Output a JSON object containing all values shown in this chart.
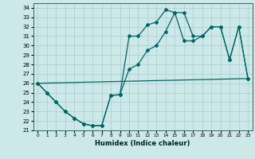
{
  "xlabel": "Humidex (Indice chaleur)",
  "bg_color": "#cce8e8",
  "line_color": "#006666",
  "grid_color": "#aacccc",
  "xlim": [
    -0.5,
    23.5
  ],
  "ylim": [
    21.0,
    34.5
  ],
  "yticks": [
    21,
    22,
    23,
    24,
    25,
    26,
    27,
    28,
    29,
    30,
    31,
    32,
    33,
    34
  ],
  "xticks": [
    0,
    1,
    2,
    3,
    4,
    5,
    6,
    7,
    8,
    9,
    10,
    11,
    12,
    13,
    14,
    15,
    16,
    17,
    18,
    19,
    20,
    21,
    22,
    23
  ],
  "line1_x": [
    0,
    1,
    2,
    3,
    4,
    5,
    6,
    7,
    8,
    9,
    10,
    11,
    12,
    13,
    14,
    15,
    16,
    17,
    18,
    19,
    20,
    21,
    22,
    23
  ],
  "line1_y": [
    26.0,
    25.0,
    24.0,
    23.0,
    22.3,
    21.7,
    21.5,
    21.5,
    24.7,
    24.8,
    31.0,
    31.0,
    32.2,
    32.5,
    33.8,
    33.5,
    33.5,
    31.0,
    31.0,
    32.0,
    32.0,
    28.5,
    32.0,
    26.5
  ],
  "line2_x": [
    0,
    1,
    2,
    3,
    4,
    5,
    6,
    7,
    8,
    9,
    10,
    11,
    12,
    13,
    14,
    15,
    16,
    17,
    18,
    19,
    20,
    21,
    22,
    23
  ],
  "line2_y": [
    26.0,
    25.0,
    24.0,
    23.0,
    22.3,
    21.7,
    21.5,
    21.5,
    24.7,
    24.8,
    27.5,
    28.0,
    29.5,
    30.0,
    31.5,
    33.5,
    30.5,
    30.5,
    31.0,
    32.0,
    32.0,
    28.5,
    32.0,
    26.5
  ],
  "line3_x": [
    0,
    23
  ],
  "line3_y": [
    26.0,
    26.5
  ],
  "marker": "D",
  "markersize": 2.0
}
